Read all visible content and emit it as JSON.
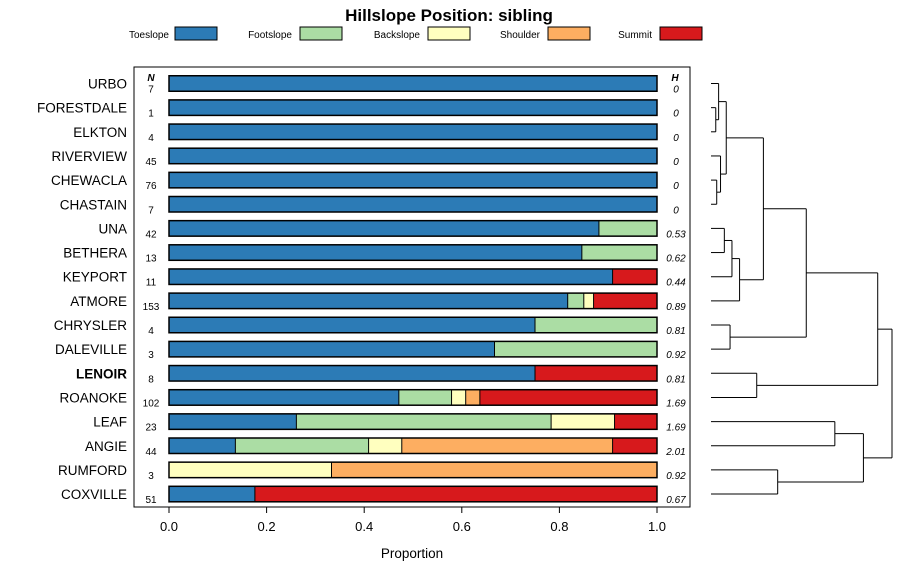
{
  "chart_data": {
    "type": "bar",
    "subtype": "stacked-horizontal-proportion",
    "title": "Hillslope Position: sibling",
    "xlabel": "Proportion",
    "xlim": [
      0,
      1
    ],
    "xticks": [
      "0.0",
      "0.2",
      "0.4",
      "0.6",
      "0.8",
      "1.0"
    ],
    "n_header": "N",
    "h_header": "H",
    "legend": [
      {
        "name": "Toeslope",
        "color": "#2c7bb6"
      },
      {
        "name": "Footslope",
        "color": "#abdda4"
      },
      {
        "name": "Backslope",
        "color": "#ffffbf"
      },
      {
        "name": "Shoulder",
        "color": "#fdae61"
      },
      {
        "name": "Summit",
        "color": "#d7191c"
      }
    ],
    "rows": [
      {
        "name": "URBO",
        "n": "7",
        "h": "0",
        "bold": false,
        "values": [
          1,
          0,
          0,
          0,
          0
        ]
      },
      {
        "name": "FORESTDALE",
        "n": "1",
        "h": "0",
        "bold": false,
        "values": [
          1,
          0,
          0,
          0,
          0
        ]
      },
      {
        "name": "ELKTON",
        "n": "4",
        "h": "0",
        "bold": false,
        "values": [
          1,
          0,
          0,
          0,
          0
        ]
      },
      {
        "name": "RIVERVIEW",
        "n": "45",
        "h": "0",
        "bold": false,
        "values": [
          1,
          0,
          0,
          0,
          0
        ]
      },
      {
        "name": "CHEWACLA",
        "n": "76",
        "h": "0",
        "bold": false,
        "values": [
          1,
          0,
          0,
          0,
          0
        ]
      },
      {
        "name": "CHASTAIN",
        "n": "7",
        "h": "0",
        "bold": false,
        "values": [
          1,
          0,
          0,
          0,
          0
        ]
      },
      {
        "name": "UNA",
        "n": "42",
        "h": "0.53",
        "bold": false,
        "values": [
          0.881,
          0.119,
          0,
          0,
          0
        ]
      },
      {
        "name": "BETHERA",
        "n": "13",
        "h": "0.62",
        "bold": false,
        "values": [
          0.846,
          0.154,
          0,
          0,
          0
        ]
      },
      {
        "name": "KEYPORT",
        "n": "11",
        "h": "0.44",
        "bold": false,
        "values": [
          0.909,
          0,
          0,
          0,
          0.091
        ]
      },
      {
        "name": "ATMORE",
        "n": "153",
        "h": "0.89",
        "bold": false,
        "values": [
          0.817,
          0.033,
          0.02,
          0,
          0.13
        ]
      },
      {
        "name": "CHRYSLER",
        "n": "4",
        "h": "0.81",
        "bold": false,
        "values": [
          0.75,
          0.25,
          0,
          0,
          0
        ]
      },
      {
        "name": "DALEVILLE",
        "n": "3",
        "h": "0.92",
        "bold": false,
        "values": [
          0.667,
          0.333,
          0,
          0,
          0
        ]
      },
      {
        "name": "LENOIR",
        "n": "8",
        "h": "0.81",
        "bold": true,
        "values": [
          0.75,
          0,
          0,
          0,
          0.25
        ]
      },
      {
        "name": "ROANOKE",
        "n": "102",
        "h": "1.69",
        "bold": false,
        "values": [
          0.471,
          0.108,
          0.029,
          0.029,
          0.363
        ]
      },
      {
        "name": "LEAF",
        "n": "23",
        "h": "1.69",
        "bold": false,
        "values": [
          0.261,
          0.522,
          0.13,
          0,
          0.087
        ]
      },
      {
        "name": "ANGIE",
        "n": "44",
        "h": "2.01",
        "bold": false,
        "values": [
          0.136,
          0.273,
          0.068,
          0.432,
          0.091
        ]
      },
      {
        "name": "RUMFORD",
        "n": "3",
        "h": "0.92",
        "bold": false,
        "values": [
          0,
          0,
          0.333,
          0.667,
          0
        ]
      },
      {
        "name": "COXVILLE",
        "n": "51",
        "h": "0.67",
        "bold": false,
        "values": [
          0.176,
          0,
          0,
          0,
          0.824
        ]
      }
    ],
    "dendrogram_merges": [
      {
        "a": 1,
        "b": 2,
        "height": 0.05
      },
      {
        "a": 0,
        "b": -1,
        "height": 0.08
      },
      {
        "a": 4,
        "b": 5,
        "height": 0.06
      },
      {
        "a": 3,
        "b": -3,
        "height": 0.1
      },
      {
        "a": -2,
        "b": -4,
        "height": 0.16
      },
      {
        "a": 6,
        "b": 7,
        "height": 0.14
      },
      {
        "a": -6,
        "b": 8,
        "height": 0.22
      },
      {
        "a": -7,
        "b": 9,
        "height": 0.3
      },
      {
        "a": -5,
        "b": -8,
        "height": 0.55
      },
      {
        "a": 10,
        "b": 11,
        "height": 0.2
      },
      {
        "a": -9,
        "b": -10,
        "height": 1.0
      },
      {
        "a": 12,
        "b": 13,
        "height": 0.48
      },
      {
        "a": -11,
        "b": -12,
        "height": 1.75
      },
      {
        "a": 14,
        "b": 15,
        "height": 1.3
      },
      {
        "a": 16,
        "b": 17,
        "height": 0.7
      },
      {
        "a": -14,
        "b": -15,
        "height": 1.6
      },
      {
        "a": -13,
        "b": -16,
        "height": 1.9
      }
    ]
  }
}
